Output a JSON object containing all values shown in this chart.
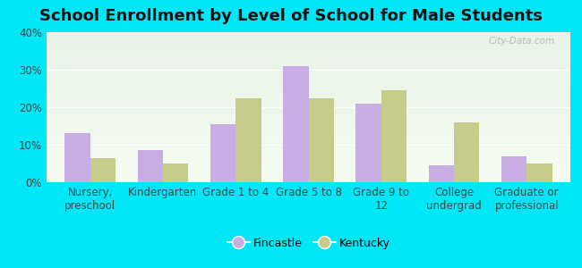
{
  "title": "School Enrollment by Level of School for Male Students",
  "categories": [
    "Nursery,\npreschool",
    "Kindergarten",
    "Grade 1 to 4",
    "Grade 5 to 8",
    "Grade 9 to\n12",
    "College\nundergrad",
    "Graduate or\nprofessional"
  ],
  "fincastle": [
    13,
    8.5,
    15.5,
    31,
    21,
    4.5,
    7
  ],
  "kentucky": [
    6.5,
    5,
    22.5,
    22.5,
    24.5,
    16,
    5
  ],
  "fincastle_color": "#c9aee5",
  "kentucky_color": "#c8cc8a",
  "background_outer": "#00e8f8",
  "background_inner_top": "#e8f3e8",
  "background_inner_bottom": "#f5fbf0",
  "ylim": [
    0,
    40
  ],
  "yticks": [
    0,
    10,
    20,
    30,
    40
  ],
  "title_fontsize": 13,
  "tick_fontsize": 8.5,
  "legend_labels": [
    "Fincastle",
    "Kentucky"
  ],
  "bar_width": 0.35,
  "watermark": "City-Data.com"
}
